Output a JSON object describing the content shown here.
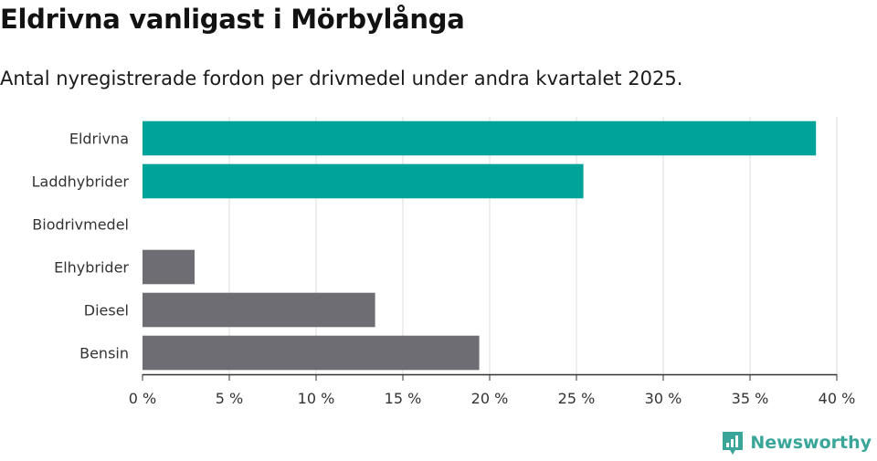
{
  "header": {
    "title": "Eldrivna vanligast i Mörbylånga",
    "subtitle": "Antal nyregistrerade fordon per drivmedel under andra kvartalet 2025."
  },
  "chart_data": {
    "type": "bar",
    "orientation": "horizontal",
    "title": "Eldrivna vanligast i Mörbylånga",
    "subtitle": "Antal nyregistrerade fordon per drivmedel under andra kvartalet 2025.",
    "categories": [
      "Eldrivna",
      "Laddhybrider",
      "Biodrivmedel",
      "Elhybrider",
      "Diesel",
      "Bensin"
    ],
    "values": [
      38.8,
      25.4,
      0,
      3.0,
      13.4,
      19.4
    ],
    "bar_colors": [
      "#00a398",
      "#00a398",
      "#00a398",
      "#6e6d73",
      "#6e6d73",
      "#6e6d73"
    ],
    "xlim": [
      0,
      40
    ],
    "xticks": [
      0,
      5,
      10,
      15,
      20,
      25,
      30,
      35,
      40
    ],
    "xtick_labels": [
      "0 %",
      "5 %",
      "10 %",
      "15 %",
      "20 %",
      "25 %",
      "30 %",
      "35 %",
      "40 %"
    ],
    "xlabel": "",
    "ylabel": "",
    "grid": true
  },
  "brand": {
    "name": "Newsworthy",
    "icon": "newsworthy-logo-icon",
    "color": "#3aa69a"
  }
}
